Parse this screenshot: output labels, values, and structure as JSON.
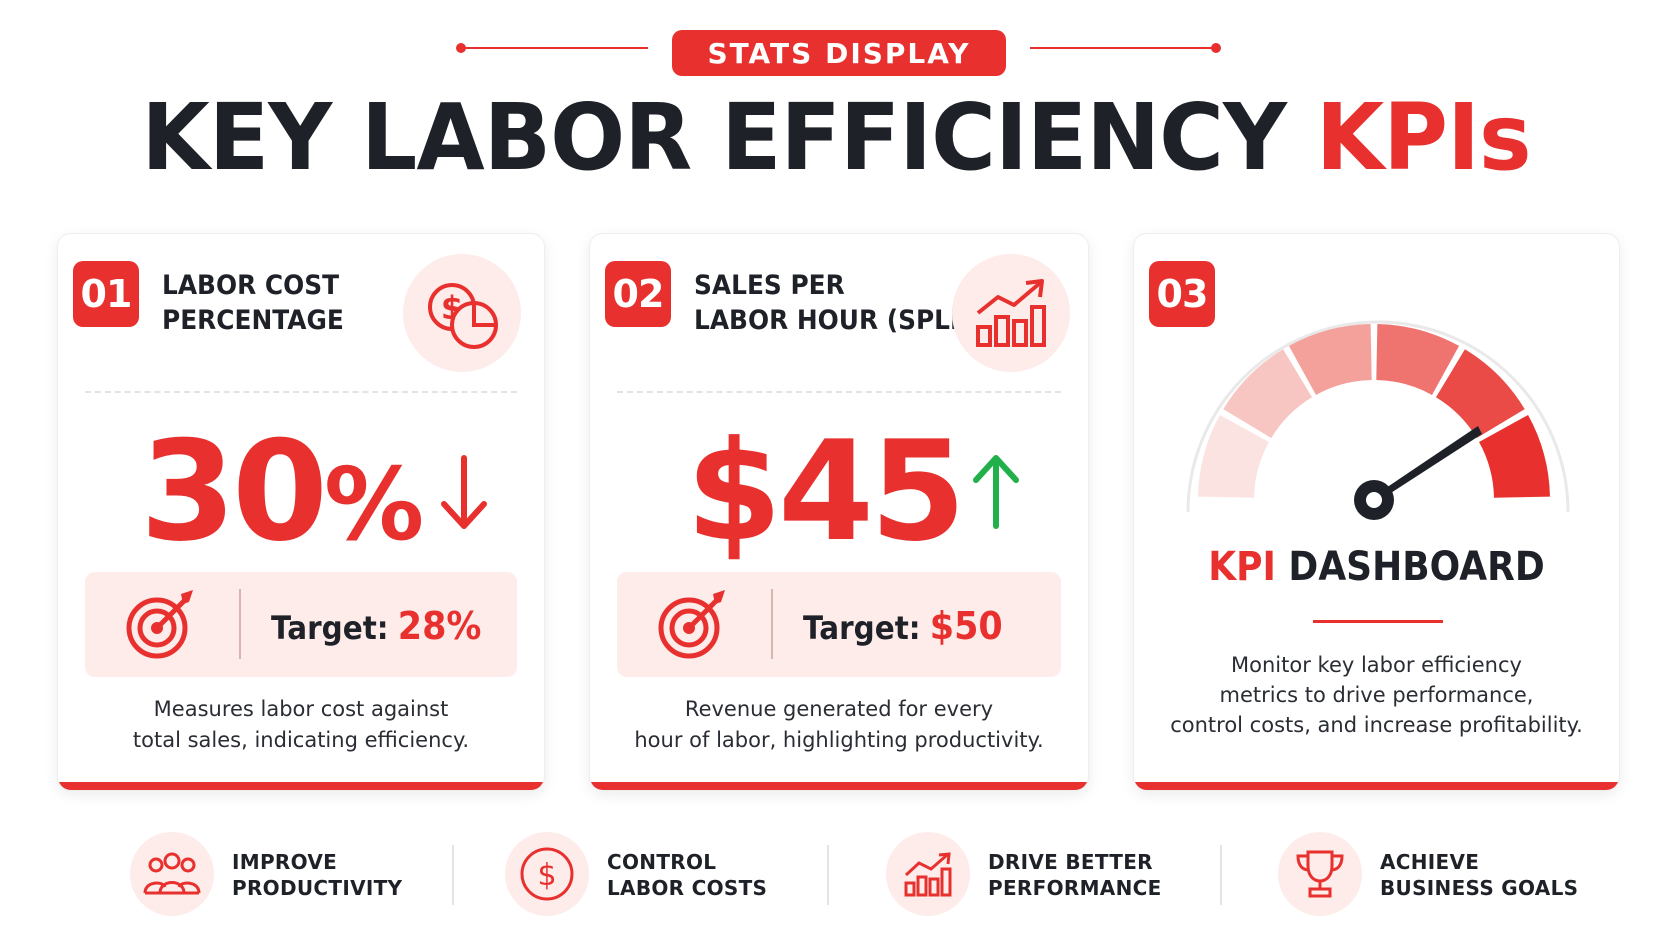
{
  "header": {
    "badge": "STATS DISPLAY",
    "title_main": "KEY LABOR EFFICIENCY ",
    "title_accent": "KPIs"
  },
  "cards": [
    {
      "number": "01",
      "title_line1": "LABOR COST",
      "title_line2": "PERCENTAGE",
      "icon": "dollar-pie-chart-icon",
      "value": "30",
      "value_suffix": "%",
      "trend": "down",
      "target_label": "Target:",
      "target_value": "28%",
      "desc_line1": "Measures labor cost against",
      "desc_line2": "total sales, indicating efficiency."
    },
    {
      "number": "02",
      "title_line1": "SALES PER",
      "title_line2": "LABOR HOUR (SPLH)",
      "icon": "growth-bar-chart-icon",
      "value": "$45",
      "trend": "up",
      "target_label": "Target:",
      "target_value": "$50",
      "desc_line1": "Revenue generated for every",
      "desc_line2": "hour of labor, highlighting productivity."
    },
    {
      "number": "03",
      "icon": "gauge-icon",
      "title_accent": "KPI",
      "title_main": " DASHBOARD",
      "desc_line1": "Monitor key labor efficiency",
      "desc_line2": "metrics to drive performance,",
      "desc_line3": "control costs, and increase profitability."
    }
  ],
  "benefits": [
    {
      "icon": "team-icon",
      "line1": "IMPROVE",
      "line2": "PRODUCTIVITY"
    },
    {
      "icon": "dollar-coin-icon",
      "line1": "CONTROL",
      "line2": "LABOR COSTS"
    },
    {
      "icon": "growth-chart-icon",
      "line1": "DRIVE BETTER",
      "line2": "PERFORMANCE"
    },
    {
      "icon": "trophy-icon",
      "line1": "ACHIEVE",
      "line2": "BUSINESS GOALS"
    }
  ],
  "colors": {
    "accent": "#e8312f",
    "dark": "#1e2228",
    "tint": "#fdecea",
    "trend_up": "#22b04b"
  }
}
